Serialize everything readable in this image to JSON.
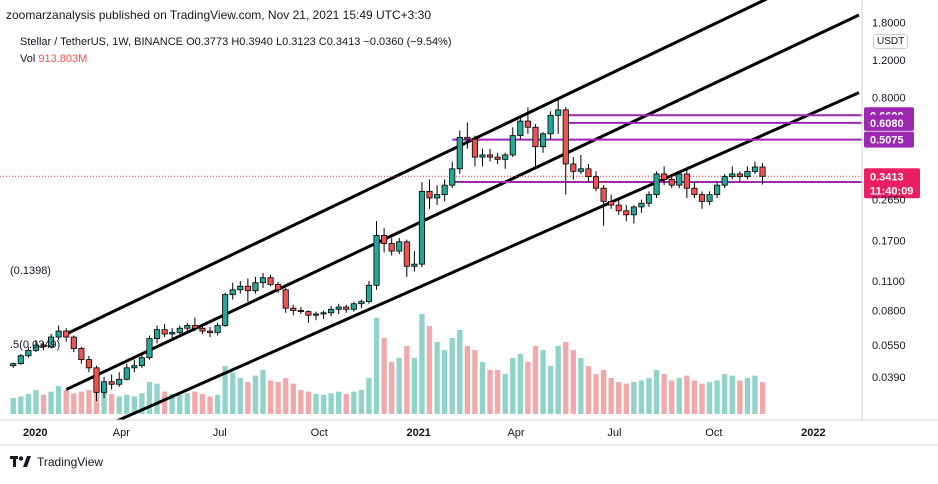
{
  "header": {
    "publisher_line": "zoomarzanalysis published on TradingView.com, Nov 21, 2021 15:49 UTC+3:30",
    "symbol_line": "Stellar / TetherUS, 1W, BINANCE  O0.3773  H0.3940  L0.3123  C0.3413  −0.0360 (−9.54%)",
    "vol_label": "Vol",
    "vol_value": "913.803M",
    "currency": "USDT"
  },
  "footer": {
    "brand": "TradingView"
  },
  "colors": {
    "up": "#26a69a",
    "down": "#ef5350",
    "vol_up": "#8fd3cb",
    "vol_down": "#f3a9a9",
    "level_line": "#9c27b0",
    "level_tag": "#9c27b0",
    "last_price_tag": "#e91e63",
    "low_tag": "#7e57c2"
  },
  "chart_data": {
    "type": "candlestick",
    "symbol": "Stellar / TetherUS",
    "interval": "1W",
    "exchange": "BINANCE",
    "y_scale": "log",
    "ylim": [
      0.025,
      1.85
    ],
    "y_ticks": [
      "1.8000",
      "1.2000",
      "0.8000",
      "0.2650",
      "0.1700",
      "0.1100",
      "0.0800",
      "0.0550",
      "0.0390"
    ],
    "y_tick_values": [
      1.8,
      1.2,
      0.8,
      0.265,
      0.17,
      0.11,
      0.08,
      0.055,
      0.039
    ],
    "x_ticks": [
      "2020",
      "Apr",
      "Jul",
      "Oct",
      "2021",
      "Apr",
      "Jul",
      "Oct",
      "2022"
    ],
    "x_tick_dates": [
      "2020-01-01",
      "2020-04-01",
      "2020-07-01",
      "2020-10-01",
      "2021-01-01",
      "2021-04-01",
      "2021-07-01",
      "2021-10-01",
      "2022-01-01"
    ],
    "x_range": [
      "2019-12-20",
      "2022-02-15"
    ],
    "ohlc": {
      "columns": [
        "date",
        "open",
        "high",
        "low",
        "close"
      ],
      "rows": [
        [
          "2019-12-23",
          0.044,
          0.0455,
          0.043,
          0.045
        ],
        [
          "2019-12-30",
          0.045,
          0.05,
          0.0445,
          0.049
        ],
        [
          "2020-01-06",
          0.049,
          0.054,
          0.048,
          0.052
        ],
        [
          "2020-01-13",
          0.052,
          0.058,
          0.051,
          0.055
        ],
        [
          "2020-01-20",
          0.055,
          0.057,
          0.052,
          0.054
        ],
        [
          "2020-01-27",
          0.054,
          0.062,
          0.053,
          0.06
        ],
        [
          "2020-02-03",
          0.06,
          0.068,
          0.058,
          0.064
        ],
        [
          "2020-02-10",
          0.064,
          0.066,
          0.057,
          0.06
        ],
        [
          "2020-02-17",
          0.06,
          0.061,
          0.051,
          0.053
        ],
        [
          "2020-02-24",
          0.053,
          0.054,
          0.045,
          0.047
        ],
        [
          "2020-03-02",
          0.047,
          0.049,
          0.041,
          0.043
        ],
        [
          "2020-03-09",
          0.043,
          0.044,
          0.03,
          0.033
        ],
        [
          "2020-03-16",
          0.033,
          0.039,
          0.031,
          0.037
        ],
        [
          "2020-03-23",
          0.037,
          0.04,
          0.034,
          0.036
        ],
        [
          "2020-03-30",
          0.036,
          0.041,
          0.035,
          0.038
        ],
        [
          "2020-04-06",
          0.038,
          0.045,
          0.0375,
          0.043
        ],
        [
          "2020-04-13",
          0.043,
          0.047,
          0.041,
          0.044
        ],
        [
          "2020-04-20",
          0.044,
          0.05,
          0.043,
          0.048
        ],
        [
          "2020-04-27",
          0.048,
          0.061,
          0.047,
          0.059
        ],
        [
          "2020-05-04",
          0.059,
          0.068,
          0.056,
          0.065
        ],
        [
          "2020-05-11",
          0.065,
          0.069,
          0.06,
          0.062
        ],
        [
          "2020-05-18",
          0.062,
          0.066,
          0.059,
          0.063
        ],
        [
          "2020-05-25",
          0.063,
          0.068,
          0.061,
          0.066
        ],
        [
          "2020-06-01",
          0.066,
          0.07,
          0.063,
          0.068
        ],
        [
          "2020-06-08",
          0.068,
          0.074,
          0.064,
          0.066
        ],
        [
          "2020-06-15",
          0.066,
          0.069,
          0.062,
          0.064
        ],
        [
          "2020-06-22",
          0.064,
          0.067,
          0.06,
          0.063
        ],
        [
          "2020-06-29",
          0.063,
          0.07,
          0.061,
          0.068
        ],
        [
          "2020-07-06",
          0.068,
          0.097,
          0.067,
          0.095
        ],
        [
          "2020-07-13",
          0.095,
          0.108,
          0.09,
          0.1
        ],
        [
          "2020-07-20",
          0.1,
          0.11,
          0.096,
          0.104
        ],
        [
          "2020-07-27",
          0.104,
          0.113,
          0.088,
          0.099
        ],
        [
          "2020-08-03",
          0.099,
          0.115,
          0.096,
          0.108
        ],
        [
          "2020-08-10",
          0.108,
          0.12,
          0.102,
          0.114
        ],
        [
          "2020-08-17",
          0.114,
          0.118,
          0.104,
          0.106
        ],
        [
          "2020-08-24",
          0.106,
          0.109,
          0.097,
          0.1
        ],
        [
          "2020-08-31",
          0.1,
          0.102,
          0.078,
          0.082
        ],
        [
          "2020-09-07",
          0.082,
          0.085,
          0.076,
          0.08
        ],
        [
          "2020-09-14",
          0.08,
          0.083,
          0.077,
          0.079
        ],
        [
          "2020-09-21",
          0.079,
          0.08,
          0.07,
          0.076
        ],
        [
          "2020-09-28",
          0.076,
          0.079,
          0.072,
          0.077
        ],
        [
          "2020-10-05",
          0.077,
          0.08,
          0.073,
          0.078
        ],
        [
          "2020-10-12",
          0.078,
          0.084,
          0.075,
          0.081
        ],
        [
          "2020-10-19",
          0.081,
          0.086,
          0.077,
          0.083
        ],
        [
          "2020-10-26",
          0.083,
          0.085,
          0.078,
          0.081
        ],
        [
          "2020-11-02",
          0.081,
          0.088,
          0.079,
          0.086
        ],
        [
          "2020-11-09",
          0.086,
          0.09,
          0.082,
          0.088
        ],
        [
          "2020-11-16",
          0.088,
          0.11,
          0.086,
          0.105
        ],
        [
          "2020-11-23",
          0.105,
          0.21,
          0.1,
          0.18
        ],
        [
          "2020-11-30",
          0.18,
          0.195,
          0.15,
          0.165
        ],
        [
          "2020-12-07",
          0.165,
          0.175,
          0.145,
          0.152
        ],
        [
          "2020-12-14",
          0.152,
          0.175,
          0.147,
          0.168
        ],
        [
          "2020-12-21",
          0.168,
          0.172,
          0.115,
          0.129
        ],
        [
          "2020-12-28",
          0.129,
          0.152,
          0.122,
          0.132
        ],
        [
          "2021-01-04",
          0.132,
          0.32,
          0.128,
          0.29
        ],
        [
          "2021-01-11",
          0.29,
          0.33,
          0.24,
          0.27
        ],
        [
          "2021-01-18",
          0.27,
          0.31,
          0.25,
          0.28
        ],
        [
          "2021-01-25",
          0.28,
          0.33,
          0.26,
          0.31
        ],
        [
          "2021-02-01",
          0.31,
          0.4,
          0.3,
          0.37
        ],
        [
          "2021-02-08",
          0.37,
          0.56,
          0.35,
          0.52
        ],
        [
          "2021-02-15",
          0.52,
          0.61,
          0.46,
          0.51
        ],
        [
          "2021-02-22",
          0.51,
          0.53,
          0.38,
          0.42
        ],
        [
          "2021-03-01",
          0.42,
          0.46,
          0.38,
          0.43
        ],
        [
          "2021-03-08",
          0.43,
          0.46,
          0.4,
          0.42
        ],
        [
          "2021-03-15",
          0.42,
          0.44,
          0.39,
          0.41
        ],
        [
          "2021-03-22",
          0.41,
          0.44,
          0.37,
          0.43
        ],
        [
          "2021-03-29",
          0.43,
          0.58,
          0.42,
          0.53
        ],
        [
          "2021-04-05",
          0.53,
          0.65,
          0.51,
          0.62
        ],
        [
          "2021-04-12",
          0.62,
          0.72,
          0.54,
          0.58
        ],
        [
          "2021-04-19",
          0.58,
          0.6,
          0.37,
          0.47
        ],
        [
          "2021-04-26",
          0.47,
          0.55,
          0.44,
          0.54
        ],
        [
          "2021-05-03",
          0.54,
          0.69,
          0.51,
          0.66
        ],
        [
          "2021-05-10",
          0.66,
          0.79,
          0.54,
          0.7
        ],
        [
          "2021-05-17",
          0.7,
          0.72,
          0.28,
          0.39
        ],
        [
          "2021-05-24",
          0.39,
          0.42,
          0.33,
          0.36
        ],
        [
          "2021-05-31",
          0.36,
          0.43,
          0.35,
          0.37
        ],
        [
          "2021-06-07",
          0.37,
          0.39,
          0.32,
          0.34
        ],
        [
          "2021-06-14",
          0.34,
          0.36,
          0.29,
          0.3
        ],
        [
          "2021-06-21",
          0.3,
          0.31,
          0.2,
          0.26
        ],
        [
          "2021-06-28",
          0.26,
          0.28,
          0.24,
          0.25
        ],
        [
          "2021-07-05",
          0.25,
          0.27,
          0.225,
          0.235
        ],
        [
          "2021-07-12",
          0.235,
          0.25,
          0.21,
          0.225
        ],
        [
          "2021-07-19",
          0.225,
          0.25,
          0.205,
          0.245
        ],
        [
          "2021-07-26",
          0.245,
          0.265,
          0.23,
          0.255
        ],
        [
          "2021-08-02",
          0.255,
          0.29,
          0.245,
          0.28
        ],
        [
          "2021-08-09",
          0.28,
          0.36,
          0.27,
          0.35
        ],
        [
          "2021-08-16",
          0.35,
          0.38,
          0.31,
          0.33
        ],
        [
          "2021-08-23",
          0.33,
          0.35,
          0.3,
          0.31
        ],
        [
          "2021-08-30",
          0.31,
          0.36,
          0.3,
          0.35
        ],
        [
          "2021-09-06",
          0.35,
          0.37,
          0.27,
          0.3
        ],
        [
          "2021-09-13",
          0.3,
          0.32,
          0.27,
          0.28
        ],
        [
          "2021-09-20",
          0.28,
          0.29,
          0.24,
          0.26
        ],
        [
          "2021-09-27",
          0.26,
          0.29,
          0.25,
          0.28
        ],
        [
          "2021-10-04",
          0.28,
          0.32,
          0.27,
          0.31
        ],
        [
          "2021-10-11",
          0.31,
          0.35,
          0.3,
          0.34
        ],
        [
          "2021-10-18",
          0.34,
          0.38,
          0.33,
          0.35
        ],
        [
          "2021-10-25",
          0.35,
          0.36,
          0.32,
          0.34
        ],
        [
          "2021-11-01",
          0.34,
          0.38,
          0.33,
          0.36
        ],
        [
          "2021-11-08",
          0.36,
          0.4,
          0.35,
          0.3773
        ],
        [
          "2021-11-15",
          0.3773,
          0.394,
          0.3123,
          0.3413
        ]
      ]
    },
    "volume": [
      20,
      22,
      25,
      30,
      24,
      28,
      35,
      30,
      26,
      28,
      30,
      42,
      32,
      25,
      22,
      24,
      22,
      26,
      40,
      38,
      28,
      25,
      24,
      26,
      28,
      25,
      22,
      24,
      60,
      52,
      45,
      40,
      48,
      55,
      42,
      40,
      45,
      38,
      30,
      28,
      25,
      24,
      26,
      28,
      25,
      28,
      30,
      45,
      120,
      95,
      65,
      70,
      85,
      70,
      125,
      110,
      90,
      80,
      95,
      105,
      85,
      80,
      65,
      55,
      55,
      50,
      70,
      75,
      65,
      85,
      80,
      60,
      85,
      90,
      80,
      70,
      60,
      50,
      55,
      45,
      40,
      38,
      40,
      42,
      45,
      55,
      50,
      42,
      45,
      48,
      42,
      38,
      40,
      42,
      50,
      48,
      42,
      45,
      48,
      40
    ],
    "volume_value_latest": "913.803M",
    "channel_lines": [
      {
        "name": "upper",
        "start": [
          "2020-02-10",
          0.062
        ],
        "end": [
          "2021-05-10",
          0.79
        ]
      },
      {
        "name": "middle",
        "start": [
          "2020-02-10",
          0.034
        ],
        "end": [
          "2021-05-10",
          0.42
        ]
      },
      {
        "name": "lower",
        "start": [
          "2020-02-10",
          0.019
        ],
        "end": [
          "2021-05-10",
          0.2
        ]
      }
    ],
    "left_annotation_labels": [
      "(0.1398)",
      ".5(0.0349)"
    ],
    "horizontal_levels": [
      {
        "label": "0.6600",
        "value": 0.66,
        "from": "2021-05-17"
      },
      {
        "label": "0.6080",
        "value": 0.608,
        "from": "2021-05-17"
      },
      {
        "label": "0.5075",
        "value": 0.5075,
        "from": "2021-02-01"
      },
      {
        "label": "0.3210",
        "value": 0.321,
        "from": "2021-02-01"
      }
    ],
    "last_price": {
      "value": 0.3413,
      "label": "0.3413",
      "countdown": "11:40:09"
    }
  }
}
